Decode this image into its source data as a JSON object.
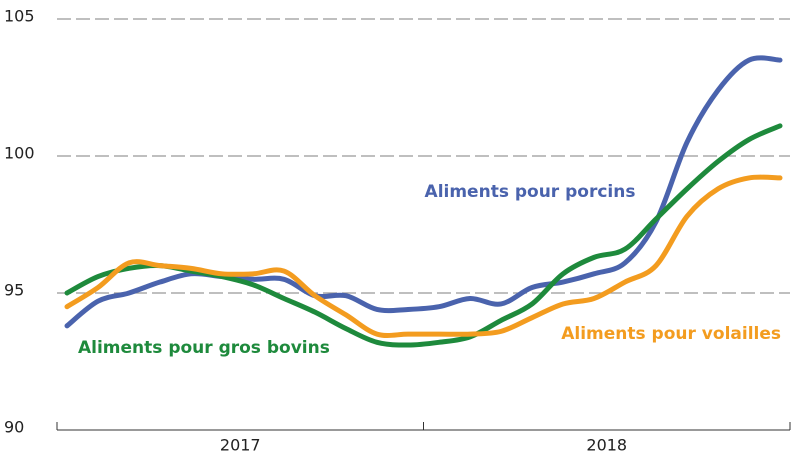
{
  "chart_data": {
    "type": "line",
    "categories": [
      null,
      null,
      null,
      null,
      null,
      null,
      null,
      null,
      null,
      null,
      null,
      null,
      null,
      null,
      null,
      null,
      null,
      null,
      null,
      null,
      null,
      null,
      null,
      null
    ],
    "year_labels": [
      "2017",
      "2018"
    ],
    "series": [
      {
        "name": "Aliments pour porcins",
        "color": "#4a63ad",
        "values": [
          93.8,
          94.7,
          95.0,
          95.4,
          95.7,
          95.6,
          95.5,
          95.5,
          94.9,
          94.9,
          94.4,
          94.4,
          94.5,
          94.8,
          94.6,
          95.2,
          95.4,
          95.7,
          96.1,
          97.6,
          100.5,
          102.4,
          103.5,
          103.5
        ]
      },
      {
        "name": "Aliments pour gros bovins",
        "color": "#1e8a3c",
        "values": [
          95.0,
          95.6,
          95.9,
          96.0,
          95.8,
          95.6,
          95.3,
          94.8,
          94.3,
          93.7,
          93.2,
          93.1,
          93.2,
          93.4,
          94.0,
          94.6,
          95.7,
          96.3,
          96.6,
          97.7,
          98.8,
          99.8,
          100.6,
          101.1
        ]
      },
      {
        "name": "Aliments pour volailles",
        "color": "#f39c1f",
        "values": [
          94.5,
          95.2,
          96.1,
          96.0,
          95.9,
          95.7,
          95.7,
          95.8,
          94.9,
          94.2,
          93.5,
          93.5,
          93.5,
          93.5,
          93.6,
          94.1,
          94.6,
          94.8,
          95.4,
          96.0,
          97.8,
          98.8,
          99.2,
          99.2
        ]
      }
    ],
    "ylim": [
      90,
      105
    ],
    "yticks": [
      90,
      95,
      100,
      105
    ],
    "grid": true
  }
}
